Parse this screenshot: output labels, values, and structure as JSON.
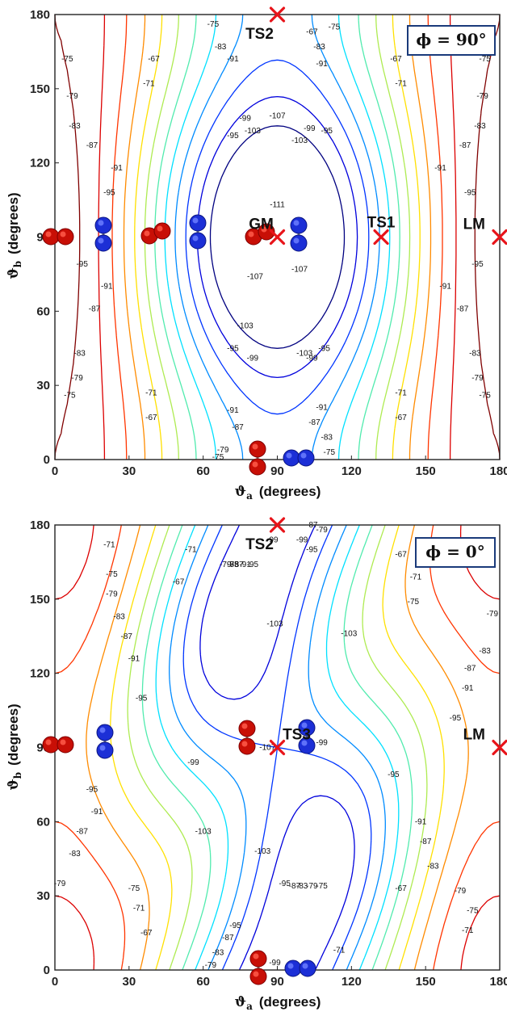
{
  "chart_data": [
    {
      "type": "contour",
      "annotation": "ϕ = 90°",
      "xlabel": "ϑ",
      "xlabel_sub": "a",
      "xlabel_unit": "(degrees)",
      "ylabel": "ϑ",
      "ylabel_sub": "b",
      "ylabel_unit": "(degrees)",
      "xlim": [
        0,
        180
      ],
      "ylim": [
        0,
        180
      ],
      "xticks": [
        "0",
        "30",
        "60",
        "90",
        "120",
        "150",
        "180"
      ],
      "yticks": [
        "0",
        "30",
        "60",
        "90",
        "120",
        "150",
        "180"
      ],
      "levels": [
        -111,
        -107,
        -103,
        -99,
        -95,
        -91,
        -87,
        -83,
        -79,
        -75,
        -71,
        -67
      ],
      "points": [
        {
          "label": "TS2",
          "x": 90,
          "y": 180
        },
        {
          "label": "GM",
          "x": 90,
          "y": 90
        },
        {
          "label": "TS1",
          "x": 132,
          "y": 90
        },
        {
          "label": "LM",
          "x": 180,
          "y": 90
        }
      ],
      "contour_labels": [
        {
          "v": "-75",
          "x": 5,
          "y": 162
        },
        {
          "v": "-67",
          "x": 40,
          "y": 162
        },
        {
          "v": "-71",
          "x": 38,
          "y": 152
        },
        {
          "v": "-79",
          "x": 7,
          "y": 147
        },
        {
          "v": "-83",
          "x": 8,
          "y": 135
        },
        {
          "v": "-87",
          "x": 15,
          "y": 127
        },
        {
          "v": "-91",
          "x": 25,
          "y": 118
        },
        {
          "v": "-95",
          "x": 22,
          "y": 108
        },
        {
          "v": "-95",
          "x": 11,
          "y": 79
        },
        {
          "v": "-91",
          "x": 21,
          "y": 70
        },
        {
          "v": "-87",
          "x": 16,
          "y": 61
        },
        {
          "v": "-83",
          "x": 10,
          "y": 43
        },
        {
          "v": "-79",
          "x": 9,
          "y": 33
        },
        {
          "v": "-75",
          "x": 6,
          "y": 26
        },
        {
          "v": "-71",
          "x": 39,
          "y": 27
        },
        {
          "v": "-67",
          "x": 39,
          "y": 17
        },
        {
          "v": "-75",
          "x": 64,
          "y": 176
        },
        {
          "v": "-83",
          "x": 67,
          "y": 167
        },
        {
          "v": "-91",
          "x": 72,
          "y": 162
        },
        {
          "v": "-99",
          "x": 77,
          "y": 138
        },
        {
          "v": "-103",
          "x": 80,
          "y": 133
        },
        {
          "v": "-95",
          "x": 72,
          "y": 131
        },
        {
          "v": "-107",
          "x": 90,
          "y": 139
        },
        {
          "v": "-103",
          "x": 99,
          "y": 129
        },
        {
          "v": "-99",
          "x": 103,
          "y": 134
        },
        {
          "v": "-95",
          "x": 110,
          "y": 133
        },
        {
          "v": "-111",
          "x": 90,
          "y": 103
        },
        {
          "v": "-107",
          "x": 81,
          "y": 74
        },
        {
          "v": "-107",
          "x": 99,
          "y": 77
        },
        {
          "v": "-103",
          "x": 77,
          "y": 54
        },
        {
          "v": "-99",
          "x": 80,
          "y": 41
        },
        {
          "v": "-95",
          "x": 72,
          "y": 45
        },
        {
          "v": "-103",
          "x": 101,
          "y": 43
        },
        {
          "v": "-99",
          "x": 104,
          "y": 41
        },
        {
          "v": "-95",
          "x": 109,
          "y": 45
        },
        {
          "v": "-91",
          "x": 72,
          "y": 20
        },
        {
          "v": "-87",
          "x": 74,
          "y": 13
        },
        {
          "v": "-79",
          "x": 68,
          "y": 4
        },
        {
          "v": "-75",
          "x": 66,
          "y": 1
        },
        {
          "v": "-91",
          "x": 108,
          "y": 21
        },
        {
          "v": "-87",
          "x": 105,
          "y": 15
        },
        {
          "v": "-83",
          "x": 110,
          "y": 9
        },
        {
          "v": "-75",
          "x": 111,
          "y": 3
        },
        {
          "v": "-67",
          "x": 104,
          "y": 173
        },
        {
          "v": "-75",
          "x": 113,
          "y": 175
        },
        {
          "v": "-83",
          "x": 107,
          "y": 167
        },
        {
          "v": "-91",
          "x": 108,
          "y": 160
        },
        {
          "v": "-67",
          "x": 138,
          "y": 162
        },
        {
          "v": "-75",
          "x": 174,
          "y": 162
        },
        {
          "v": "-71",
          "x": 140,
          "y": 152
        },
        {
          "v": "-79",
          "x": 173,
          "y": 147
        },
        {
          "v": "-83",
          "x": 172,
          "y": 135
        },
        {
          "v": "-87",
          "x": 166,
          "y": 127
        },
        {
          "v": "-91",
          "x": 156,
          "y": 118
        },
        {
          "v": "-95",
          "x": 168,
          "y": 108
        },
        {
          "v": "-95",
          "x": 171,
          "y": 79
        },
        {
          "v": "-91",
          "x": 158,
          "y": 70
        },
        {
          "v": "-87",
          "x": 165,
          "y": 61
        },
        {
          "v": "-83",
          "x": 170,
          "y": 43
        },
        {
          "v": "-79",
          "x": 171,
          "y": 33
        },
        {
          "v": "-75",
          "x": 174,
          "y": 26
        },
        {
          "v": "-71",
          "x": 140,
          "y": 27
        },
        {
          "v": "-67",
          "x": 140,
          "y": 17
        }
      ]
    },
    {
      "type": "contour",
      "annotation": "ϕ = 0°",
      "xlabel": "ϑ",
      "xlabel_sub": "a",
      "xlabel_unit": "(degrees)",
      "ylabel": "ϑ",
      "ylabel_sub": "b",
      "ylabel_unit": "(degrees)",
      "xlim": [
        0,
        180
      ],
      "ylim": [
        0,
        180
      ],
      "xticks": [
        "0",
        "30",
        "60",
        "90",
        "120",
        "150",
        "180"
      ],
      "yticks": [
        "0",
        "30",
        "60",
        "90",
        "120",
        "150",
        "180"
      ],
      "levels": [
        -107,
        -103,
        -99,
        -95,
        -91,
        -87,
        -83,
        -79,
        -75,
        -71,
        -67
      ],
      "points": [
        {
          "label": "TS2",
          "x": 90,
          "y": 180
        },
        {
          "label": "TS3",
          "x": 90,
          "y": 90
        },
        {
          "label": "LM",
          "x": 180,
          "y": 90
        }
      ],
      "contour_labels": [
        {
          "v": "-71",
          "x": 22,
          "y": 172
        },
        {
          "v": "-75",
          "x": 23,
          "y": 160
        },
        {
          "v": "-79",
          "x": 23,
          "y": 152
        },
        {
          "v": "-83",
          "x": 26,
          "y": 143
        },
        {
          "v": "-87",
          "x": 29,
          "y": 135
        },
        {
          "v": "-91",
          "x": 32,
          "y": 126
        },
        {
          "v": "-95",
          "x": 35,
          "y": 110
        },
        {
          "v": "-67",
          "x": 50,
          "y": 157
        },
        {
          "v": "-71",
          "x": 55,
          "y": 170
        },
        {
          "v": "-75",
          "x": 72,
          "y": 164
        },
        {
          "v": "-79",
          "x": 69,
          "y": 164
        },
        {
          "v": "-83",
          "x": 72,
          "y": 164
        },
        {
          "v": "-87",
          "x": 74,
          "y": 164
        },
        {
          "v": "-91",
          "x": 77,
          "y": 164
        },
        {
          "v": "-95",
          "x": 80,
          "y": 164
        },
        {
          "v": "-99",
          "x": 88,
          "y": 174
        },
        {
          "v": "-99",
          "x": 100,
          "y": 174
        },
        {
          "v": "-95",
          "x": 104,
          "y": 170
        },
        {
          "v": "-87",
          "x": 104,
          "y": 180
        },
        {
          "v": "-79",
          "x": 108,
          "y": 178
        },
        {
          "v": "-103",
          "x": 89,
          "y": 140
        },
        {
          "v": "-103",
          "x": 119,
          "y": 136
        },
        {
          "v": "-99",
          "x": 56,
          "y": 84
        },
        {
          "v": "-107",
          "x": 86,
          "y": 90
        },
        {
          "v": "-99",
          "x": 108,
          "y": 92
        },
        {
          "v": "-103",
          "x": 60,
          "y": 56
        },
        {
          "v": "-103",
          "x": 84,
          "y": 48
        },
        {
          "v": "-95",
          "x": 93,
          "y": 35
        },
        {
          "v": "-87",
          "x": 97,
          "y": 34
        },
        {
          "v": "-83",
          "x": 100,
          "y": 34
        },
        {
          "v": "-79",
          "x": 104,
          "y": 34
        },
        {
          "v": "-75",
          "x": 108,
          "y": 34
        },
        {
          "v": "-95",
          "x": 15,
          "y": 73
        },
        {
          "v": "-91",
          "x": 17,
          "y": 64
        },
        {
          "v": "-87",
          "x": 11,
          "y": 56
        },
        {
          "v": "-83",
          "x": 8,
          "y": 47
        },
        {
          "v": "-79",
          "x": 2,
          "y": 35
        },
        {
          "v": "-75",
          "x": 32,
          "y": 33
        },
        {
          "v": "-71",
          "x": 34,
          "y": 25
        },
        {
          "v": "-67",
          "x": 37,
          "y": 15
        },
        {
          "v": "-95",
          "x": 73,
          "y": 18
        },
        {
          "v": "-87",
          "x": 70,
          "y": 13
        },
        {
          "v": "-83",
          "x": 66,
          "y": 7
        },
        {
          "v": "-79",
          "x": 63,
          "y": 2
        },
        {
          "v": "-99",
          "x": 89,
          "y": 3
        },
        {
          "v": "-71",
          "x": 115,
          "y": 8
        },
        {
          "v": "-67",
          "x": 140,
          "y": 33
        },
        {
          "v": "-75",
          "x": 169,
          "y": 24
        },
        {
          "v": "-71",
          "x": 167,
          "y": 16
        },
        {
          "v": "-79",
          "x": 164,
          "y": 32
        },
        {
          "v": "-83",
          "x": 153,
          "y": 42
        },
        {
          "v": "-87",
          "x": 150,
          "y": 52
        },
        {
          "v": "-91",
          "x": 148,
          "y": 60
        },
        {
          "v": "-95",
          "x": 137,
          "y": 79
        },
        {
          "v": "-95",
          "x": 162,
          "y": 102
        },
        {
          "v": "-91",
          "x": 167,
          "y": 114
        },
        {
          "v": "-87",
          "x": 168,
          "y": 122
        },
        {
          "v": "-83",
          "x": 174,
          "y": 129
        },
        {
          "v": "-79",
          "x": 177,
          "y": 144
        },
        {
          "v": "-75",
          "x": 145,
          "y": 149
        },
        {
          "v": "-71",
          "x": 146,
          "y": 159
        },
        {
          "v": "-67",
          "x": 140,
          "y": 168
        }
      ]
    }
  ]
}
